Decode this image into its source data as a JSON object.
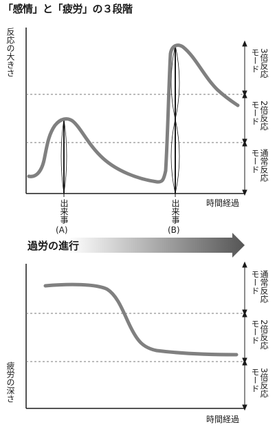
{
  "title": "「感情」と「疲労」の３段階",
  "top": {
    "y_label": "反応の大きさ",
    "x_label": "時間経過",
    "modes": [
      {
        "line1": "3倍反応",
        "line2": "モード"
      },
      {
        "line1": "2倍反応",
        "line2": "モード"
      },
      {
        "line1": "通常反応",
        "line2": "モード"
      }
    ],
    "events": [
      {
        "label": "出来事",
        "tag": "(A)"
      },
      {
        "label": "出来事",
        "tag": "(B)"
      }
    ]
  },
  "arrow_label": "過労の進行",
  "bottom": {
    "y_label": "疲労の深さ",
    "x_label": "時間経過",
    "modes": [
      {
        "line1": "通常反応",
        "line2": "モード"
      },
      {
        "line1": "2倍反応",
        "line2": "モード"
      },
      {
        "line1": "3倍反応",
        "line2": "モード"
      }
    ]
  },
  "colors": {
    "curve": "#808080",
    "axis": "#1a1a1a",
    "dash": "#777777"
  }
}
